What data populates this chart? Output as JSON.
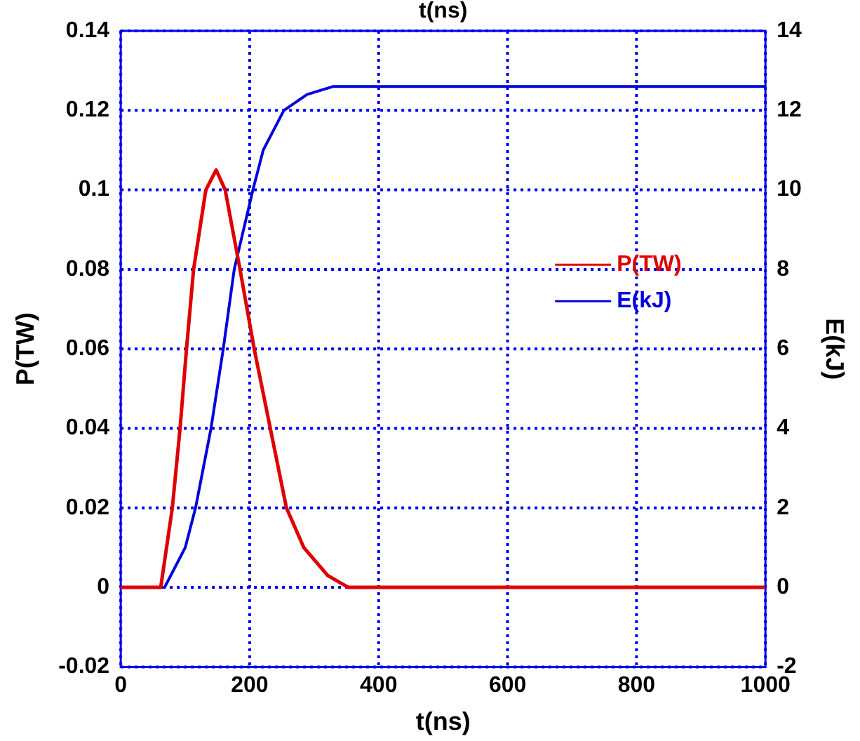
{
  "chart_data": {
    "type": "line",
    "title": "t(ns)",
    "xlabel": "t(ns)",
    "ylabel": "P(TW)",
    "y2label": "E(kJ)",
    "xlim": [
      0,
      1000
    ],
    "xticks": [
      0,
      200,
      400,
      600,
      800,
      1000
    ],
    "ylim": [
      -0.02,
      0.14
    ],
    "yticks": [
      -0.02,
      0,
      0.02,
      0.04,
      0.06,
      0.08,
      0.1,
      0.12,
      0.14
    ],
    "y2lim": [
      -2,
      14
    ],
    "y2ticks": [
      -2,
      0,
      2,
      4,
      6,
      8,
      10,
      12,
      14
    ],
    "grid": true,
    "legend": "right",
    "marker": "none",
    "line_style": "solid",
    "series": [
      {
        "name": "P(TW)",
        "color": "#e00000",
        "x": [
          0,
          62,
          80,
          92,
          102,
          113,
          132,
          148,
          162,
          185,
          207,
          232,
          257,
          284,
          321,
          353,
          1000
        ],
        "values": [
          0,
          0,
          0.02,
          0.04,
          0.06,
          0.08,
          0.1,
          0.105,
          0.1,
          0.08,
          0.06,
          0.04,
          0.02,
          0.01,
          0.003,
          0,
          0
        ]
      },
      {
        "name": "E(kJ)",
        "color": "#0000dd",
        "axis": "y2",
        "x": [
          0,
          68,
          100,
          116,
          140,
          159,
          176,
          205,
          221,
          253,
          289,
          329,
          1000
        ],
        "values": [
          0,
          0,
          1,
          2,
          4,
          6,
          8,
          10,
          11,
          12,
          12.4,
          12.6,
          12.6
        ]
      }
    ]
  }
}
